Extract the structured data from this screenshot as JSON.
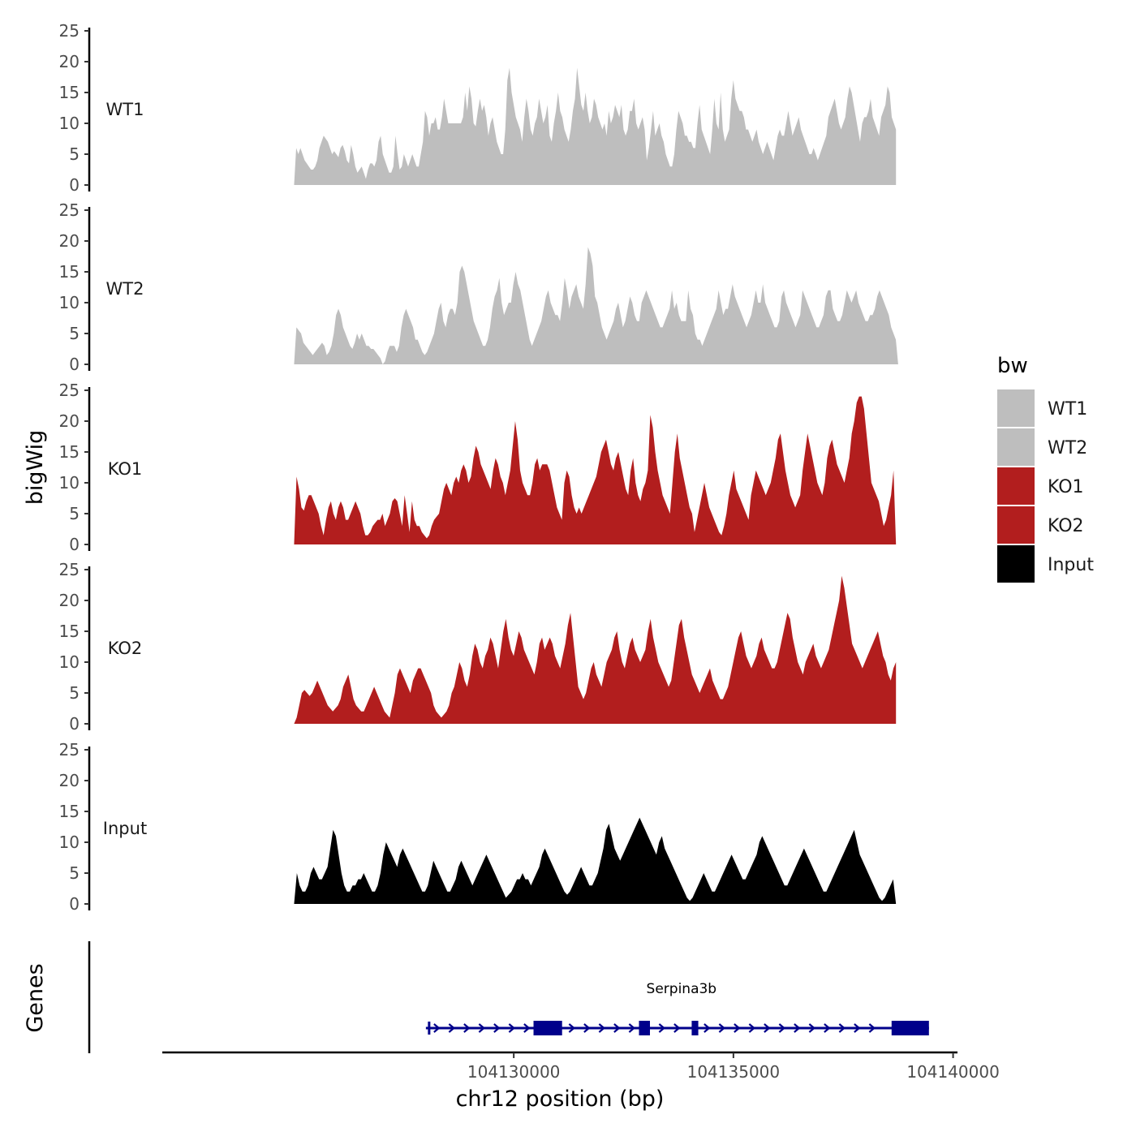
{
  "chart_data": {
    "type": "area",
    "region": {
      "chromosome": "chr12",
      "start": 104125000,
      "end": 104140000
    },
    "xlim": [
      104122000,
      104140100
    ],
    "ylim": [
      0,
      25
    ],
    "yticks": [
      0,
      5,
      10,
      15,
      20,
      25
    ],
    "yticks_labels": [
      "0",
      "5",
      "10",
      "15",
      "20",
      "25"
    ],
    "xticks": [
      104130000,
      104135000,
      104140000
    ],
    "xticks_labels": [
      "104130000",
      "104135000",
      "104140000"
    ],
    "xlabel": "chr12 position (bp)",
    "ylabel": "bigWig",
    "genes_label": "Genes",
    "legend": {
      "title": "bw",
      "position": "right"
    },
    "colors": {
      "WT1": "#bebebe",
      "WT2": "#bebebe",
      "KO1": "#b21e1e",
      "KO2": "#b21e1e",
      "Input": "#000000",
      "gene": "#00008b",
      "axis": "#000000",
      "tick_text": "#4d4d4d"
    },
    "series": [
      {
        "name": "WT1",
        "start": 104125000,
        "end": 104138700,
        "values": [
          0,
          6,
          5,
          6,
          5,
          4,
          3.5,
          3,
          2.5,
          2.5,
          3,
          4,
          6,
          7,
          8,
          7.5,
          7,
          6,
          5,
          5.5,
          5,
          4.5,
          6,
          6.5,
          5.5,
          4,
          3.5,
          6.5,
          5,
          3,
          2,
          2.5,
          3,
          2,
          1,
          2.5,
          3.5,
          3.5,
          3,
          4,
          7,
          8,
          5,
          4,
          3,
          2,
          2,
          3,
          8,
          5,
          2.5,
          3,
          5,
          4,
          3,
          4,
          5,
          4,
          3,
          3,
          5,
          7,
          12,
          11,
          8,
          10,
          10,
          11,
          9,
          9,
          11,
          14,
          12,
          10,
          10,
          10,
          10,
          10,
          10,
          10,
          11,
          15,
          12,
          16,
          14,
          10,
          9.5,
          12,
          14,
          12,
          13,
          11,
          8,
          10,
          11,
          9,
          7,
          6,
          5,
          5,
          9,
          17,
          19,
          15,
          13,
          11,
          10,
          9,
          7,
          11,
          14,
          12,
          9,
          8,
          10,
          11,
          14,
          12,
          10,
          11,
          13,
          8,
          7,
          10,
          12,
          15,
          12,
          11,
          9,
          8,
          7,
          9,
          12,
          14,
          19,
          16,
          13,
          12,
          15,
          12,
          10,
          11,
          14,
          13,
          11,
          10,
          9,
          10,
          8,
          12,
          10,
          11,
          13,
          12,
          11,
          13,
          9,
          8,
          9,
          12,
          12,
          14,
          10,
          9,
          10,
          11,
          9,
          4,
          6,
          9,
          12,
          8,
          9,
          10,
          8,
          7,
          5,
          4,
          3,
          3,
          5,
          9,
          12,
          11,
          10,
          8,
          8,
          7,
          7,
          6,
          6,
          10,
          13,
          9,
          8,
          7,
          6,
          5,
          9,
          14,
          10,
          9,
          15,
          9,
          7,
          8,
          9,
          14,
          17,
          14,
          13,
          12,
          12,
          11,
          9,
          9,
          8,
          7,
          8,
          9,
          7,
          6,
          5,
          6,
          7,
          6,
          5,
          4,
          6,
          8,
          9,
          8,
          8,
          10,
          12,
          10,
          8,
          9,
          10,
          11,
          9,
          8,
          7,
          6,
          5,
          5,
          6,
          5,
          4,
          5,
          6,
          7,
          8,
          11,
          12,
          13,
          14,
          12,
          10,
          9,
          10,
          11,
          14,
          16,
          15,
          13,
          11,
          9,
          7,
          10,
          11,
          11,
          12,
          14,
          11,
          10,
          9,
          8,
          11,
          12,
          13,
          16,
          15,
          11,
          10,
          9
        ]
      },
      {
        "name": "WT2",
        "start": 104125000,
        "end": 104138750,
        "values": [
          0,
          6,
          5.5,
          5,
          3.5,
          3,
          2.5,
          2,
          1.5,
          2,
          2.5,
          3,
          3.5,
          3,
          1.5,
          2,
          3,
          5,
          8,
          9,
          8,
          6,
          5,
          4,
          3,
          2.5,
          3.5,
          5,
          4,
          5,
          4,
          3,
          3,
          2.5,
          2.5,
          2,
          1.5,
          1,
          0,
          0.5,
          2,
          3,
          3,
          3,
          2,
          3,
          6,
          8,
          9,
          8,
          7,
          6,
          4,
          4,
          3,
          2,
          1.5,
          2,
          3,
          4,
          5,
          7,
          9,
          10,
          7,
          6,
          8,
          9,
          9,
          8,
          10,
          15,
          16,
          15,
          13,
          11,
          9,
          7,
          6,
          5,
          4,
          3,
          3,
          4,
          6,
          9,
          11,
          12,
          14,
          10,
          8,
          9,
          10,
          10,
          13,
          15,
          13,
          12,
          10,
          8,
          6,
          4,
          3,
          4,
          5,
          6,
          7,
          9,
          11,
          12,
          10,
          9,
          8,
          8,
          7,
          10,
          14,
          12,
          9,
          11,
          12,
          13,
          11,
          10,
          9,
          13,
          19,
          18,
          16,
          11,
          10,
          8,
          6,
          5,
          4,
          5,
          6,
          7,
          9,
          10,
          8,
          6,
          7,
          9,
          11,
          10,
          8,
          7,
          7,
          10,
          11,
          12,
          11,
          10,
          9,
          8,
          7,
          6,
          6,
          7,
          8,
          9,
          12,
          9,
          10,
          8,
          7,
          7,
          7,
          12,
          9,
          8,
          5,
          4,
          4,
          3,
          4,
          5,
          6,
          7,
          8,
          9,
          12,
          10,
          8,
          9,
          9,
          11,
          13,
          11,
          10,
          9,
          8,
          7,
          6,
          7,
          8,
          10,
          12,
          10,
          10,
          13,
          10,
          9,
          8,
          7,
          6,
          6,
          7,
          11,
          12,
          10,
          9,
          8,
          7,
          6,
          7,
          8,
          12,
          11,
          10,
          9,
          8,
          7,
          6,
          6,
          7,
          8,
          11,
          12,
          12,
          9,
          8,
          7,
          7,
          8,
          10,
          12,
          11,
          10,
          11,
          12,
          10,
          9,
          8,
          7,
          7,
          8,
          8,
          9,
          11,
          12,
          11,
          10,
          9,
          8,
          6,
          5,
          4,
          0
        ]
      },
      {
        "name": "KO1",
        "start": 104125000,
        "end": 104138700,
        "values": [
          0,
          11,
          9,
          6,
          5.5,
          7,
          8,
          8,
          7,
          6,
          5,
          3,
          1.5,
          4,
          6,
          7,
          5,
          4,
          6,
          7,
          6,
          4,
          4,
          5,
          6,
          7,
          6,
          5,
          3,
          1.5,
          1.5,
          2,
          3,
          3.5,
          4,
          4,
          5,
          3,
          4,
          5,
          7,
          7.5,
          7,
          5,
          3,
          8,
          5,
          2,
          7,
          4,
          3,
          3,
          2,
          1.5,
          1,
          1.5,
          3,
          4,
          4.5,
          5,
          7,
          9,
          10,
          9,
          8,
          10,
          11,
          10,
          12,
          13,
          12,
          10,
          11,
          14,
          16,
          15,
          13,
          12,
          11,
          10,
          9,
          12,
          14,
          13,
          11,
          10,
          8,
          10,
          12,
          16,
          20,
          17,
          12,
          10,
          9,
          8,
          8,
          10,
          13,
          14,
          12,
          13,
          13,
          13,
          12,
          10,
          8,
          6,
          5,
          4,
          10,
          12,
          11,
          8,
          6,
          5,
          6,
          5,
          6,
          7,
          8,
          9,
          10,
          11,
          13,
          15,
          16,
          17,
          15,
          13,
          12,
          14,
          15,
          13,
          11,
          9,
          8,
          12,
          14,
          10,
          8,
          7,
          9,
          10,
          12,
          21,
          19,
          15,
          12,
          10,
          8,
          7,
          6,
          5,
          10,
          15,
          18,
          14,
          12,
          10,
          8,
          6,
          5,
          2,
          4,
          6,
          8,
          10,
          8,
          6,
          5,
          4,
          3,
          2,
          1.5,
          3,
          5,
          8,
          10,
          12,
          9,
          8,
          7,
          6,
          5,
          4,
          8,
          10,
          12,
          11,
          10,
          9,
          8,
          9,
          10,
          12,
          14,
          17,
          18,
          15,
          12,
          10,
          8,
          7,
          6,
          7,
          8,
          12,
          15,
          18,
          16,
          14,
          12,
          10,
          9,
          8,
          10,
          14,
          16,
          17,
          15,
          13,
          12,
          11,
          10,
          12,
          14,
          18,
          20,
          23,
          24,
          24,
          22,
          18,
          14,
          10,
          9,
          8,
          7,
          5,
          3,
          4,
          6,
          8,
          12,
          0
        ]
      },
      {
        "name": "KO2",
        "start": 104125000,
        "end": 104138700,
        "values": [
          0,
          1,
          3,
          5,
          5.5,
          5,
          4.5,
          5,
          6,
          7,
          6,
          5,
          4,
          3,
          2.5,
          2,
          2.5,
          3,
          4,
          6,
          7,
          8,
          6,
          4,
          3,
          2.5,
          2,
          2,
          3,
          4,
          5,
          6,
          5,
          4,
          3,
          2,
          1.5,
          1,
          3,
          5,
          8,
          9,
          8,
          7,
          6,
          5,
          7,
          8,
          9,
          9,
          8,
          7,
          6,
          5,
          3,
          2,
          1.5,
          1,
          1.5,
          2,
          3,
          5,
          6,
          8,
          10,
          9,
          7,
          6,
          8,
          11,
          13,
          12,
          10,
          9,
          11,
          12,
          14,
          13,
          11,
          9,
          12,
          15,
          17,
          14,
          12,
          11,
          13,
          15,
          14,
          12,
          11,
          10,
          9,
          8,
          10,
          13,
          14,
          12,
          13,
          14,
          13,
          11,
          10,
          9,
          11,
          13,
          16,
          18,
          14,
          10,
          6,
          5,
          4,
          5,
          7,
          9,
          10,
          8,
          7,
          6,
          8,
          10,
          11,
          12,
          14,
          15,
          12,
          10,
          9,
          11,
          13,
          14,
          12,
          11,
          10,
          11,
          12,
          15,
          17,
          14,
          12,
          10,
          9,
          8,
          7,
          6,
          7,
          10,
          13,
          16,
          17,
          14,
          12,
          10,
          8,
          7,
          6,
          5,
          6,
          7,
          8,
          9,
          7,
          6,
          5,
          4,
          4,
          5,
          6,
          8,
          10,
          12,
          14,
          15,
          13,
          11,
          10,
          9,
          10,
          11,
          13,
          14,
          12,
          11,
          10,
          9,
          9,
          10,
          12,
          14,
          16,
          18,
          17,
          14,
          12,
          10,
          9,
          8,
          10,
          11,
          12,
          13,
          11,
          10,
          9,
          10,
          11,
          12,
          14,
          16,
          18,
          20,
          24,
          22,
          19,
          16,
          13,
          12,
          11,
          10,
          9,
          10,
          11,
          12,
          13,
          14,
          15,
          13,
          11,
          10,
          8,
          7,
          9,
          10
        ]
      },
      {
        "name": "Input",
        "start": 104125000,
        "end": 104138700,
        "values": [
          0,
          5,
          3,
          2,
          2,
          3,
          5,
          6,
          5,
          4,
          4,
          5,
          6,
          9,
          12,
          11,
          8,
          5,
          3,
          2,
          2,
          3,
          3,
          4,
          4,
          5,
          4,
          3,
          2,
          2,
          3,
          5,
          8,
          10,
          9,
          8,
          7,
          6,
          8,
          9,
          8,
          7,
          6,
          5,
          4,
          3,
          2,
          2,
          3,
          5,
          7,
          6,
          5,
          4,
          3,
          2,
          2,
          3,
          4,
          6,
          7,
          6,
          5,
          4,
          3,
          4,
          5,
          6,
          7,
          8,
          7,
          6,
          5,
          4,
          3,
          2,
          1,
          1.5,
          2,
          3,
          4,
          4,
          5,
          4,
          4,
          3,
          4,
          5,
          6,
          8,
          9,
          8,
          7,
          6,
          5,
          4,
          3,
          2,
          1.5,
          2,
          3,
          4,
          5,
          6,
          5,
          4,
          3,
          3,
          4,
          5,
          7,
          9,
          12,
          13,
          11,
          9,
          8,
          7,
          8,
          9,
          10,
          11,
          12,
          13,
          14,
          13,
          12,
          11,
          10,
          9,
          8,
          10,
          11,
          9,
          8,
          7,
          6,
          5,
          4,
          3,
          2,
          1,
          0.5,
          1,
          2,
          3,
          4,
          5,
          4,
          3,
          2,
          2,
          3,
          4,
          5,
          6,
          7,
          8,
          7,
          6,
          5,
          4,
          4,
          5,
          6,
          7,
          8,
          10,
          11,
          10,
          9,
          8,
          7,
          6,
          5,
          4,
          3,
          3,
          4,
          5,
          6,
          7,
          8,
          9,
          8,
          7,
          6,
          5,
          4,
          3,
          2,
          2,
          3,
          4,
          5,
          6,
          7,
          8,
          9,
          10,
          11,
          12,
          10,
          8,
          7,
          6,
          5,
          4,
          3,
          2,
          1,
          0.5,
          1,
          2,
          3,
          4,
          0
        ]
      }
    ],
    "gene": {
      "name": "Serpina3b",
      "start": 104128000,
      "end": 104139450,
      "strand": "+",
      "exons": [
        [
          104130450,
          104131100
        ],
        [
          104132850,
          104133100
        ],
        [
          104134050,
          104134200
        ],
        [
          104138600,
          104139450
        ]
      ]
    }
  }
}
